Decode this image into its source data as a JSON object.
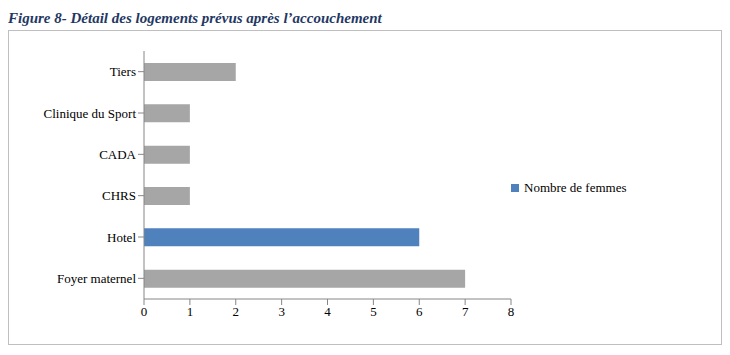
{
  "chart_data": {
    "type": "bar",
    "title": "Figure 8- Détail des logements prévus après l’accouchement",
    "orientation": "horizontal",
    "categories": [
      "Tiers",
      "Clinique du Sport",
      "CADA",
      "CHRS",
      "Hotel",
      "Foyer maternel"
    ],
    "series": [
      {
        "name": "Nombre de femmes",
        "color": "#4f81bd",
        "colors": [
          "#a6a6a6",
          "#a6a6a6",
          "#a6a6a6",
          "#a6a6a6",
          "#4f81bd",
          "#a6a6a6"
        ],
        "values": [
          2,
          1,
          1,
          1,
          6,
          7
        ]
      }
    ],
    "xlim": [
      0,
      8
    ],
    "xticks": [
      0,
      1,
      2,
      3,
      4,
      5,
      6,
      7,
      8
    ],
    "grid": false,
    "legend": "right"
  }
}
